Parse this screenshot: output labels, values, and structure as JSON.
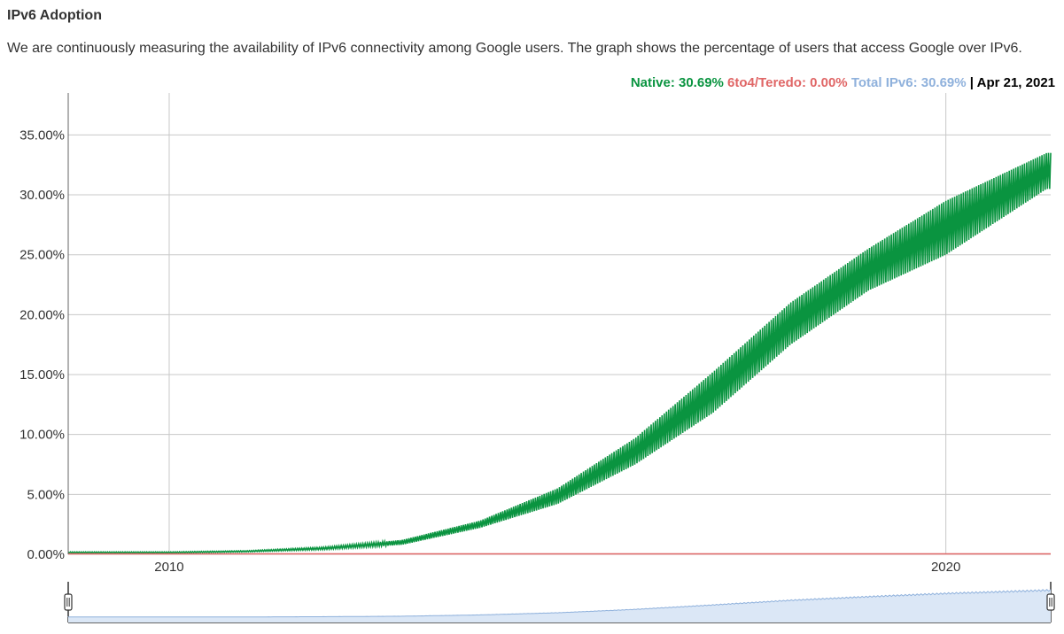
{
  "header": {
    "title": "IPv6 Adoption",
    "description": "We are continuously measuring the availability of IPv6 connectivity among Google users. The graph shows the percentage of users that access Google over IPv6."
  },
  "legend": {
    "native": "Native: 30.69%",
    "teredo": "6to4/Teredo: 0.00%",
    "total": "Total IPv6: 30.69%",
    "separator": "|",
    "date": "Apr 21, 2021"
  },
  "colors": {
    "native": "#0a9440",
    "teredo": "#e06666",
    "total": "#8fb1dc"
  },
  "chart_data": {
    "type": "area",
    "title": "",
    "xlabel": "",
    "ylabel": "",
    "x_range": [
      "2008-09",
      "2021-04"
    ],
    "ylim": [
      0,
      0.385
    ],
    "y_ticks": [
      "0.00%",
      "5.00%",
      "10.00%",
      "15.00%",
      "20.00%",
      "25.00%",
      "30.00%",
      "35.00%"
    ],
    "y_tick_values": [
      0,
      0.05,
      0.1,
      0.15,
      0.2,
      0.25,
      0.3,
      0.35
    ],
    "x_ticks": [
      "2010",
      "2020"
    ],
    "x_tick_values": [
      2010,
      2020
    ],
    "grid": true,
    "legend_position": "top-right",
    "series": [
      {
        "name": "Native",
        "color": "#0a9440",
        "x": [
          2008.7,
          2010,
          2011,
          2012,
          2013,
          2014,
          2015,
          2016,
          2017,
          2018,
          2019,
          2020,
          2021.3
        ],
        "upper": [
          0.002,
          0.002,
          0.003,
          0.006,
          0.012,
          0.028,
          0.055,
          0.097,
          0.152,
          0.21,
          0.255,
          0.295,
          0.335
        ],
        "lower": [
          0.001,
          0.001,
          0.002,
          0.004,
          0.008,
          0.022,
          0.042,
          0.075,
          0.118,
          0.175,
          0.22,
          0.25,
          0.305
        ]
      },
      {
        "name": "6to4/Teredo",
        "color": "#e06666",
        "x": [
          2008.7,
          2021.3
        ],
        "upper": [
          0.0,
          0.0
        ],
        "lower": [
          0.0,
          0.0
        ]
      }
    ]
  }
}
